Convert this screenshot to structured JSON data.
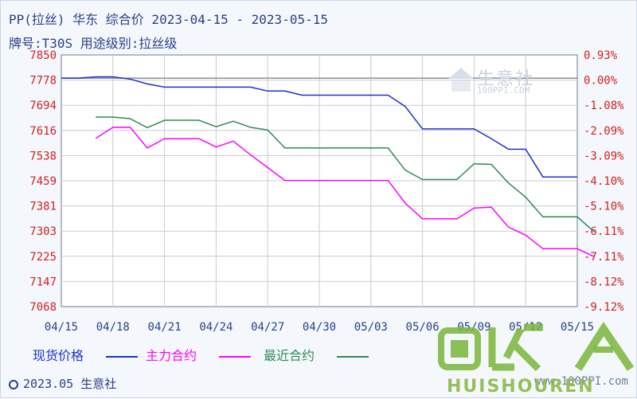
{
  "title": "PP(拉丝) 华东 综合价 2023-04-15 - 2023-05-15",
  "subtitle": "牌号:T30S 用途级别:拉丝级",
  "watermark": {
    "brand": "生意社",
    "site": "100PPI.COM"
  },
  "footer": {
    "left": "2023.05 生意社",
    "right": "www.100PPI.com"
  },
  "overlay": {
    "text": "HUISHOUREN"
  },
  "colors": {
    "spot": "#1c2fd2",
    "main": "#ff00ff",
    "near": "#2e8b57",
    "left_axis": "#d42020",
    "right_axis": "#d42020",
    "text": "#2a3f8a"
  },
  "chart_data": {
    "type": "line",
    "title": "PP(拉丝) 华东 综合价 2023-04-15 - 2023-05-15",
    "x_ticks": [
      "04/15",
      "04/18",
      "04/21",
      "04/24",
      "04/27",
      "04/30",
      "05/03",
      "05/06",
      "05/09",
      "05/12",
      "05/15"
    ],
    "left_ticks": [
      "7850",
      "7778",
      "7694",
      "7616",
      "7538",
      "7459",
      "7381",
      "7303",
      "7225",
      "7147",
      "7068"
    ],
    "right_ticks": [
      "0.93%",
      "0.00%",
      "-1.08%",
      "-2.09%",
      "-3.09%",
      "-4.10%",
      "-5.10%",
      "-6.11%",
      "-7.11%",
      "-8.12%",
      "-9.12%"
    ],
    "ylim": [
      7068,
      7850
    ],
    "xlim": [
      0,
      30
    ],
    "baseline": 7778,
    "grid": true,
    "series": [
      {
        "name": "现货价格",
        "color": "#1c2fd2",
        "points": [
          [
            0,
            7778
          ],
          [
            1,
            7778
          ],
          [
            2,
            7782
          ],
          [
            3,
            7782
          ],
          [
            4,
            7775
          ],
          [
            5,
            7760
          ],
          [
            6,
            7750
          ],
          [
            7,
            7750
          ],
          [
            8,
            7750
          ],
          [
            9,
            7750
          ],
          [
            10,
            7750
          ],
          [
            11,
            7750
          ],
          [
            12,
            7738
          ],
          [
            13,
            7738
          ],
          [
            14,
            7725
          ],
          [
            15,
            7725
          ],
          [
            16,
            7725
          ],
          [
            17,
            7725
          ],
          [
            18,
            7725
          ],
          [
            19,
            7725
          ],
          [
            20,
            7690
          ],
          [
            21,
            7620
          ],
          [
            22,
            7620
          ],
          [
            23,
            7620
          ],
          [
            24,
            7620
          ],
          [
            25,
            7590
          ],
          [
            26,
            7557
          ],
          [
            27,
            7557
          ],
          [
            28,
            7471
          ],
          [
            29,
            7471
          ],
          [
            30,
            7471
          ]
        ]
      },
      {
        "name": "主力合约",
        "color": "#ff00ff",
        "points": [
          [
            2,
            7591
          ],
          [
            3,
            7625
          ],
          [
            4,
            7625
          ],
          [
            5,
            7561
          ],
          [
            6,
            7590
          ],
          [
            7,
            7590
          ],
          [
            8,
            7590
          ],
          [
            9,
            7564
          ],
          [
            10,
            7582
          ],
          [
            11,
            7540
          ],
          [
            12,
            7500
          ],
          [
            13,
            7460
          ],
          [
            14,
            7460
          ],
          [
            15,
            7460
          ],
          [
            16,
            7460
          ],
          [
            17,
            7460
          ],
          [
            18,
            7460
          ],
          [
            19,
            7460
          ],
          [
            20,
            7389
          ],
          [
            21,
            7341
          ],
          [
            22,
            7341
          ],
          [
            23,
            7341
          ],
          [
            24,
            7374
          ],
          [
            25,
            7377
          ],
          [
            26,
            7315
          ],
          [
            27,
            7290
          ],
          [
            28,
            7248
          ],
          [
            29,
            7248
          ],
          [
            30,
            7248
          ],
          [
            31,
            7223
          ]
        ]
      },
      {
        "name": "最近合约",
        "color": "#2e8b57",
        "points": [
          [
            2,
            7657
          ],
          [
            3,
            7657
          ],
          [
            4,
            7652
          ],
          [
            5,
            7624
          ],
          [
            6,
            7647
          ],
          [
            7,
            7647
          ],
          [
            8,
            7647
          ],
          [
            9,
            7627
          ],
          [
            10,
            7644
          ],
          [
            11,
            7625
          ],
          [
            12,
            7617
          ],
          [
            13,
            7561
          ],
          [
            14,
            7561
          ],
          [
            15,
            7561
          ],
          [
            16,
            7561
          ],
          [
            17,
            7561
          ],
          [
            18,
            7561
          ],
          [
            19,
            7561
          ],
          [
            20,
            7492
          ],
          [
            21,
            7463
          ],
          [
            22,
            7463
          ],
          [
            23,
            7463
          ],
          [
            24,
            7512
          ],
          [
            25,
            7510
          ],
          [
            26,
            7452
          ],
          [
            27,
            7408
          ],
          [
            28,
            7347
          ],
          [
            29,
            7347
          ],
          [
            30,
            7347
          ],
          [
            31,
            7300
          ]
        ]
      }
    ],
    "legend": [
      {
        "label": "现货价格",
        "color": "#1c2fd2"
      },
      {
        "label": "主力合约",
        "color": "#ff00ff"
      },
      {
        "label": "最近合约",
        "color": "#2e8b57"
      }
    ]
  }
}
